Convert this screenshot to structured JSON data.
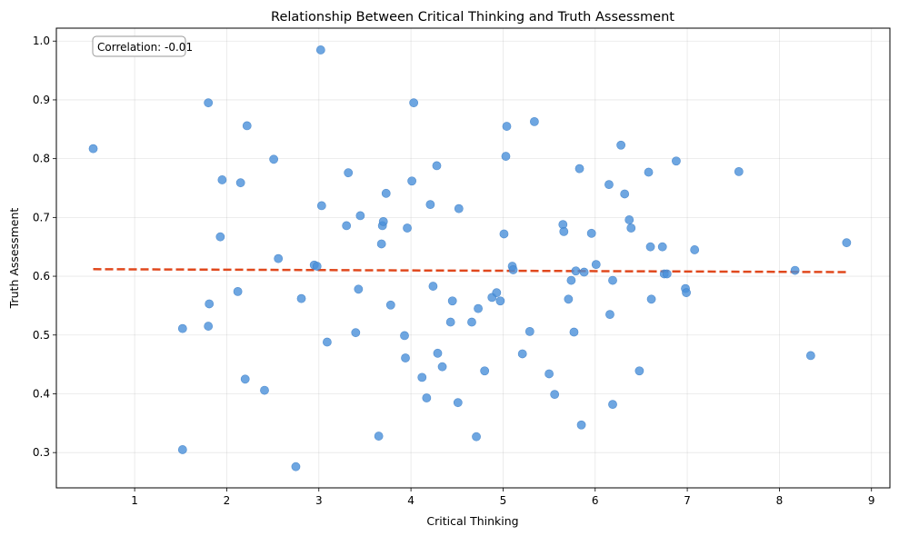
{
  "chart_data": {
    "type": "scatter",
    "title": "Relationship Between Critical Thinking and Truth Assessment",
    "xlabel": "Critical Thinking",
    "ylabel": "Truth Assessment",
    "xlim": [
      0.15,
      9.2
    ],
    "ylim": [
      0.24,
      1.022
    ],
    "xticks": [
      1,
      2,
      3,
      4,
      5,
      6,
      7,
      8,
      9
    ],
    "yticks": [
      0.3,
      0.4,
      0.5,
      0.6,
      0.7,
      0.8,
      0.9,
      1.0
    ],
    "ytick_labels": [
      "0.3",
      "0.4",
      "0.5",
      "0.6",
      "0.7",
      "0.8",
      "0.9",
      "1.0"
    ],
    "grid": true,
    "annotation": "Correlation: -0.01",
    "colors": {
      "points": "#4a90d9",
      "trend": "#e0481d"
    },
    "trend_line": {
      "x": [
        0.55,
        8.75
      ],
      "y": [
        0.612,
        0.607
      ]
    },
    "points": [
      [
        0.55,
        0.817
      ],
      [
        1.52,
        0.511
      ],
      [
        1.52,
        0.305
      ],
      [
        1.8,
        0.895
      ],
      [
        1.81,
        0.553
      ],
      [
        1.8,
        0.515
      ],
      [
        1.93,
        0.667
      ],
      [
        1.95,
        0.764
      ],
      [
        2.12,
        0.574
      ],
      [
        2.15,
        0.759
      ],
      [
        2.2,
        0.425
      ],
      [
        2.22,
        0.856
      ],
      [
        2.41,
        0.406
      ],
      [
        2.51,
        0.799
      ],
      [
        2.56,
        0.63
      ],
      [
        2.75,
        0.276
      ],
      [
        2.81,
        0.562
      ],
      [
        2.95,
        0.619
      ],
      [
        2.98,
        0.617
      ],
      [
        3.02,
        0.985
      ],
      [
        3.03,
        0.72
      ],
      [
        3.09,
        0.488
      ],
      [
        3.3,
        0.686
      ],
      [
        3.32,
        0.776
      ],
      [
        3.4,
        0.504
      ],
      [
        3.43,
        0.578
      ],
      [
        3.45,
        0.703
      ],
      [
        3.65,
        0.328
      ],
      [
        3.68,
        0.655
      ],
      [
        3.69,
        0.686
      ],
      [
        3.7,
        0.693
      ],
      [
        3.73,
        0.741
      ],
      [
        3.78,
        0.551
      ],
      [
        3.93,
        0.499
      ],
      [
        3.94,
        0.461
      ],
      [
        3.96,
        0.682
      ],
      [
        4.01,
        0.762
      ],
      [
        4.03,
        0.895
      ],
      [
        4.12,
        0.428
      ],
      [
        4.17,
        0.393
      ],
      [
        4.21,
        0.722
      ],
      [
        4.24,
        0.583
      ],
      [
        4.29,
        0.469
      ],
      [
        4.28,
        0.788
      ],
      [
        4.34,
        0.446
      ],
      [
        4.43,
        0.522
      ],
      [
        4.45,
        0.558
      ],
      [
        4.51,
        0.385
      ],
      [
        4.52,
        0.715
      ],
      [
        4.66,
        0.522
      ],
      [
        4.71,
        0.327
      ],
      [
        4.73,
        0.545
      ],
      [
        4.8,
        0.439
      ],
      [
        4.88,
        0.564
      ],
      [
        4.93,
        0.572
      ],
      [
        4.97,
        0.558
      ],
      [
        5.01,
        0.672
      ],
      [
        5.04,
        0.855
      ],
      [
        5.03,
        0.804
      ],
      [
        5.1,
        0.617
      ],
      [
        5.11,
        0.611
      ],
      [
        5.21,
        0.468
      ],
      [
        5.29,
        0.506
      ],
      [
        5.34,
        0.863
      ],
      [
        5.5,
        0.434
      ],
      [
        5.56,
        0.399
      ],
      [
        5.65,
        0.688
      ],
      [
        5.66,
        0.676
      ],
      [
        5.71,
        0.561
      ],
      [
        5.74,
        0.593
      ],
      [
        5.77,
        0.505
      ],
      [
        5.79,
        0.609
      ],
      [
        5.83,
        0.783
      ],
      [
        5.85,
        0.347
      ],
      [
        5.88,
        0.607
      ],
      [
        5.96,
        0.673
      ],
      [
        6.01,
        0.62
      ],
      [
        6.15,
        0.756
      ],
      [
        6.16,
        0.535
      ],
      [
        6.19,
        0.382
      ],
      [
        6.19,
        0.593
      ],
      [
        6.28,
        0.823
      ],
      [
        6.32,
        0.74
      ],
      [
        6.37,
        0.696
      ],
      [
        6.39,
        0.682
      ],
      [
        6.48,
        0.439
      ],
      [
        6.58,
        0.777
      ],
      [
        6.6,
        0.65
      ],
      [
        6.61,
        0.561
      ],
      [
        6.73,
        0.65
      ],
      [
        6.75,
        0.604
      ],
      [
        6.78,
        0.604
      ],
      [
        6.88,
        0.796
      ],
      [
        6.98,
        0.579
      ],
      [
        6.99,
        0.572
      ],
      [
        7.08,
        0.645
      ],
      [
        7.56,
        0.778
      ],
      [
        8.17,
        0.61
      ],
      [
        8.34,
        0.465
      ],
      [
        8.73,
        0.657
      ]
    ]
  }
}
